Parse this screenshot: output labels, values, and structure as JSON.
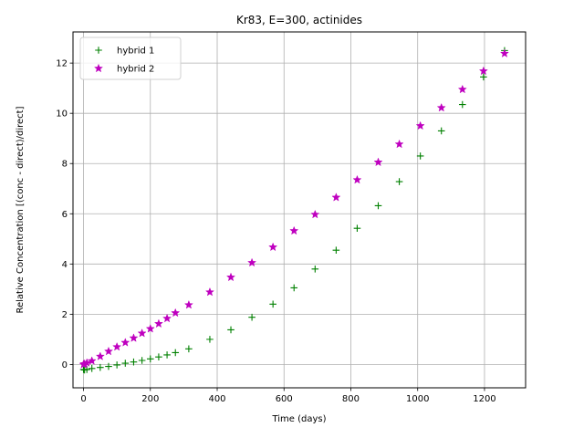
{
  "chart_data": {
    "type": "scatter",
    "title": "Kr83, E=300, actinides",
    "xlabel": "Time (days)",
    "ylabel": "Relative Concentration [(conc - direct)/direct]",
    "xlim": [
      -31.5,
      1323
    ],
    "ylim": [
      -0.93,
      13.24
    ],
    "xticks": [
      0,
      200,
      400,
      600,
      800,
      1000,
      1200
    ],
    "yticks": [
      0,
      2,
      4,
      6,
      8,
      10,
      12
    ],
    "grid": true,
    "legend_position": "top-left",
    "series": [
      {
        "name": "hybrid 1",
        "marker": "plus",
        "color": "#008000",
        "x": [
          0,
          3,
          10,
          25,
          50,
          75,
          100,
          125,
          150,
          175,
          200,
          225,
          250,
          275,
          315,
          378,
          441,
          504,
          567,
          630,
          693,
          756,
          819,
          882,
          945,
          1008,
          1071,
          1134,
          1197,
          1260
        ],
        "y": [
          -0.2,
          -0.22,
          -0.2,
          -0.16,
          -0.12,
          -0.08,
          -0.02,
          0.05,
          0.1,
          0.16,
          0.22,
          0.3,
          0.38,
          0.47,
          0.62,
          1.0,
          1.38,
          1.88,
          2.4,
          3.05,
          3.8,
          4.55,
          5.42,
          6.32,
          7.28,
          8.3,
          9.3,
          10.35,
          11.45,
          12.5
        ]
      },
      {
        "name": "hybrid 2",
        "marker": "star",
        "color": "#bf00bf",
        "x": [
          0,
          3,
          10,
          25,
          50,
          75,
          100,
          125,
          150,
          175,
          200,
          225,
          250,
          275,
          315,
          378,
          441,
          504,
          567,
          630,
          693,
          756,
          819,
          882,
          945,
          1008,
          1071,
          1134,
          1197,
          1260
        ],
        "y": [
          0.0,
          0.02,
          0.06,
          0.14,
          0.32,
          0.52,
          0.7,
          0.87,
          1.05,
          1.24,
          1.42,
          1.62,
          1.83,
          2.05,
          2.37,
          2.88,
          3.47,
          4.05,
          4.67,
          5.32,
          5.97,
          6.65,
          7.35,
          8.05,
          8.77,
          9.5,
          10.22,
          10.95,
          11.68,
          12.38
        ]
      }
    ]
  }
}
